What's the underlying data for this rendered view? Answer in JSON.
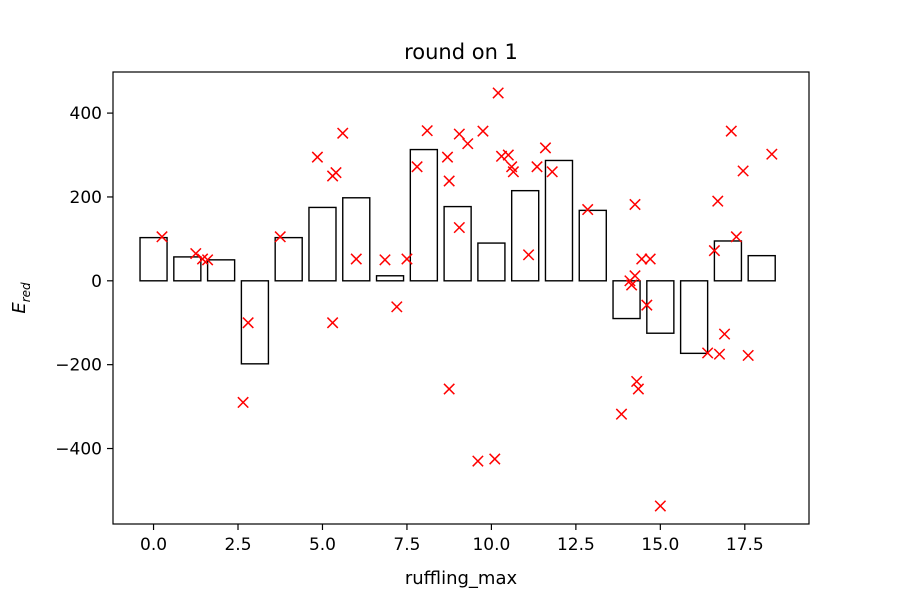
{
  "chart_data": {
    "type": "bar",
    "title": "round on 1",
    "xlabel": "ruffling_max",
    "ylabel_main": "E",
    "ylabel_sub": "red",
    "xlim": [
      -1.2,
      19.4
    ],
    "ylim": [
      -580,
      498
    ],
    "xticks": [
      0.0,
      2.5,
      5.0,
      7.5,
      10.0,
      12.5,
      15.0,
      17.5
    ],
    "xtick_labels": [
      "0.0",
      "2.5",
      "5.0",
      "7.5",
      "10.0",
      "12.5",
      "15.0",
      "17.5"
    ],
    "yticks": [
      -400,
      -200,
      0,
      200,
      400
    ],
    "ytick_labels": [
      "−400",
      "−200",
      "0",
      "200",
      "400"
    ],
    "bar_width": 0.8,
    "bar_color": "#000000",
    "bars": [
      {
        "x": 0,
        "value": 103
      },
      {
        "x": 1,
        "value": 57
      },
      {
        "x": 2,
        "value": 50
      },
      {
        "x": 3,
        "value": -198
      },
      {
        "x": 4,
        "value": 103
      },
      {
        "x": 5,
        "value": 175
      },
      {
        "x": 6,
        "value": 198
      },
      {
        "x": 7,
        "value": 12
      },
      {
        "x": 8,
        "value": 313
      },
      {
        "x": 9,
        "value": 177
      },
      {
        "x": 10,
        "value": 90
      },
      {
        "x": 11,
        "value": 215
      },
      {
        "x": 12,
        "value": 287
      },
      {
        "x": 13,
        "value": 168
      },
      {
        "x": 14,
        "value": -90
      },
      {
        "x": 15,
        "value": -125
      },
      {
        "x": 16,
        "value": -173
      },
      {
        "x": 17,
        "value": 95
      },
      {
        "x": 18,
        "value": 60
      }
    ],
    "scatter_color": "#ff0000",
    "scatter_marker": "x",
    "points": [
      [
        0.25,
        105
      ],
      [
        1.25,
        65
      ],
      [
        1.45,
        52
      ],
      [
        1.6,
        50
      ],
      [
        2.65,
        -290
      ],
      [
        2.8,
        -100
      ],
      [
        3.75,
        105
      ],
      [
        4.85,
        295
      ],
      [
        5.3,
        250
      ],
      [
        5.4,
        258
      ],
      [
        5.3,
        -100
      ],
      [
        5.6,
        352
      ],
      [
        6.0,
        52
      ],
      [
        6.85,
        50
      ],
      [
        7.2,
        -62
      ],
      [
        7.5,
        52
      ],
      [
        7.8,
        272
      ],
      [
        8.1,
        358
      ],
      [
        8.7,
        295
      ],
      [
        8.75,
        238
      ],
      [
        8.75,
        -258
      ],
      [
        9.05,
        350
      ],
      [
        9.05,
        127
      ],
      [
        9.3,
        327
      ],
      [
        9.6,
        -430
      ],
      [
        9.75,
        357
      ],
      [
        10.1,
        -425
      ],
      [
        10.2,
        448
      ],
      [
        10.3,
        297
      ],
      [
        10.5,
        300
      ],
      [
        10.6,
        272
      ],
      [
        10.65,
        260
      ],
      [
        11.1,
        62
      ],
      [
        11.35,
        272
      ],
      [
        11.6,
        317
      ],
      [
        11.8,
        260
      ],
      [
        12.85,
        170
      ],
      [
        13.85,
        -318
      ],
      [
        14.1,
        0
      ],
      [
        14.15,
        -10
      ],
      [
        14.25,
        182
      ],
      [
        14.25,
        12
      ],
      [
        14.3,
        -240
      ],
      [
        14.35,
        -258
      ],
      [
        14.45,
        52
      ],
      [
        14.6,
        -58
      ],
      [
        14.7,
        52
      ],
      [
        15.0,
        -537
      ],
      [
        16.4,
        -172
      ],
      [
        16.6,
        72
      ],
      [
        16.7,
        190
      ],
      [
        16.75,
        -175
      ],
      [
        16.9,
        -127
      ],
      [
        17.1,
        357
      ],
      [
        17.25,
        105
      ],
      [
        17.45,
        262
      ],
      [
        17.6,
        -178
      ],
      [
        18.3,
        302
      ]
    ]
  }
}
